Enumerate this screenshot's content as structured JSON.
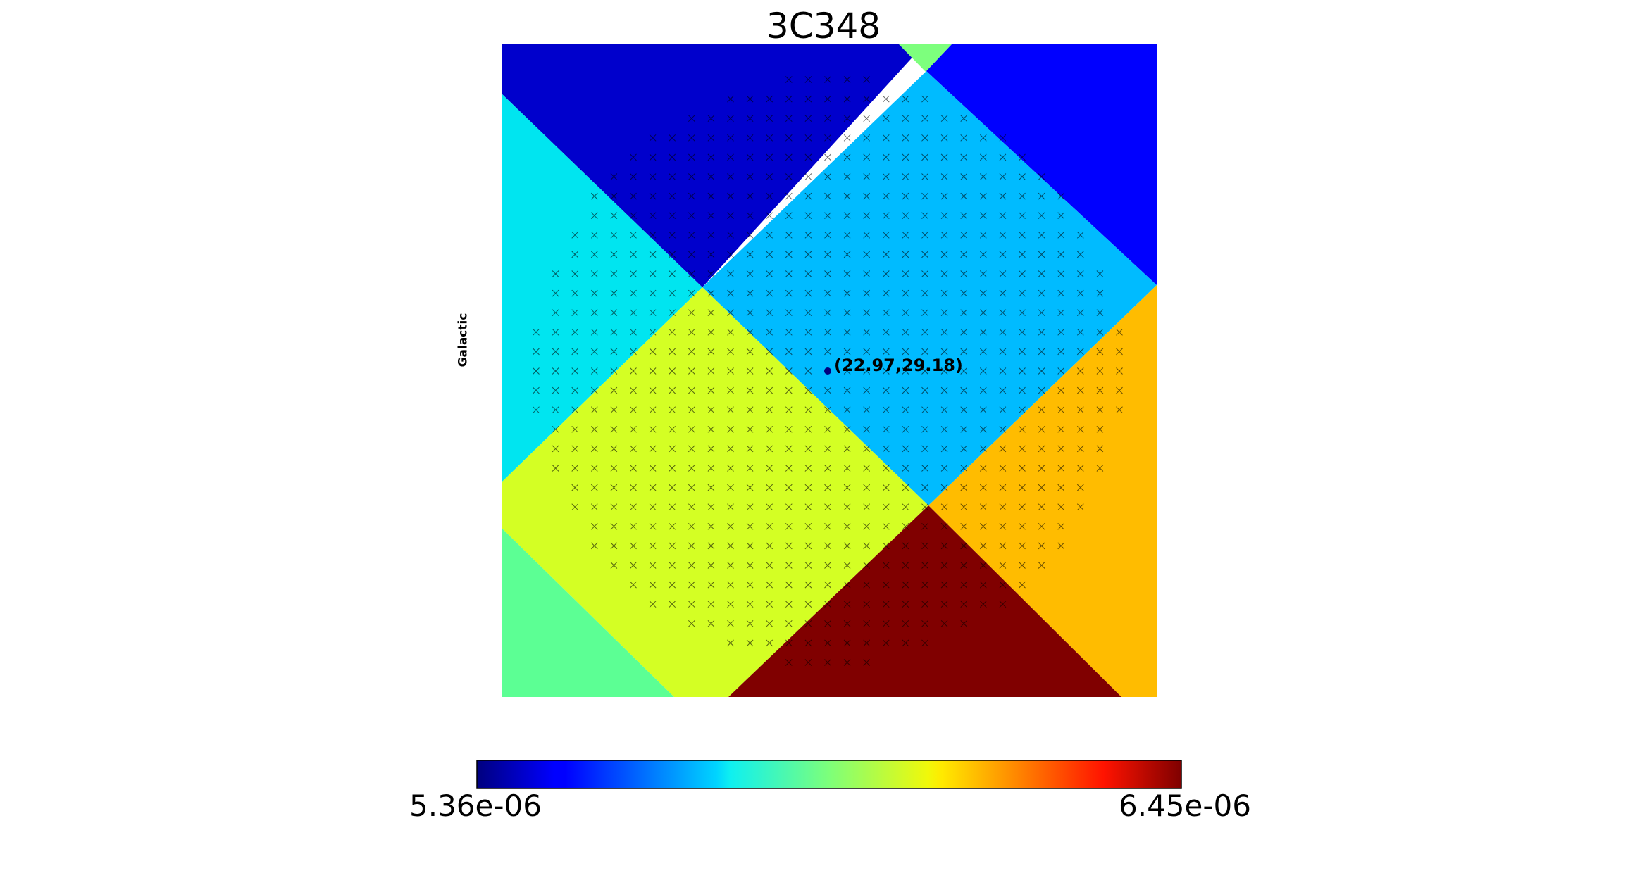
{
  "chart_data": {
    "type": "heatmap",
    "title": "3C348",
    "coordinate_label": "Galactic",
    "colormap": "jet",
    "colorbar": {
      "min": 5.36e-06,
      "max": 6.45e-06,
      "min_label": "5.36e-06",
      "max_label": "6.45e-06"
    },
    "source": {
      "label": "(22.97,29.18)",
      "l": 22.97,
      "b": 29.18
    },
    "regions": [
      {
        "name": "top-center",
        "value_fraction": 0.08
      },
      {
        "name": "top-right",
        "value_fraction": 0.17
      },
      {
        "name": "left",
        "value_fraction": 0.36
      },
      {
        "name": "center",
        "value_fraction": 0.31
      },
      {
        "name": "bottom-left-center",
        "value_fraction": 0.56
      },
      {
        "name": "right",
        "value_fraction": 0.72
      },
      {
        "name": "bottom-center",
        "value_fraction": 1.0
      },
      {
        "name": "bottom-left-corner",
        "value_fraction": 0.48
      },
      {
        "name": "top-notch",
        "value_fraction": 0.48
      }
    ],
    "colors": {
      "top-center": "#0000cc",
      "top-right": "#0000ff",
      "left": "#00e5f0",
      "center": "#00bbff",
      "bottom-left-center": "#d4ff24",
      "right": "#ffbc00",
      "bottom-center": "#800000",
      "bottom-left-corner": "#5cff94",
      "top-notch": "#7dff7d"
    },
    "marker": "x",
    "marker_color": "#000000"
  }
}
